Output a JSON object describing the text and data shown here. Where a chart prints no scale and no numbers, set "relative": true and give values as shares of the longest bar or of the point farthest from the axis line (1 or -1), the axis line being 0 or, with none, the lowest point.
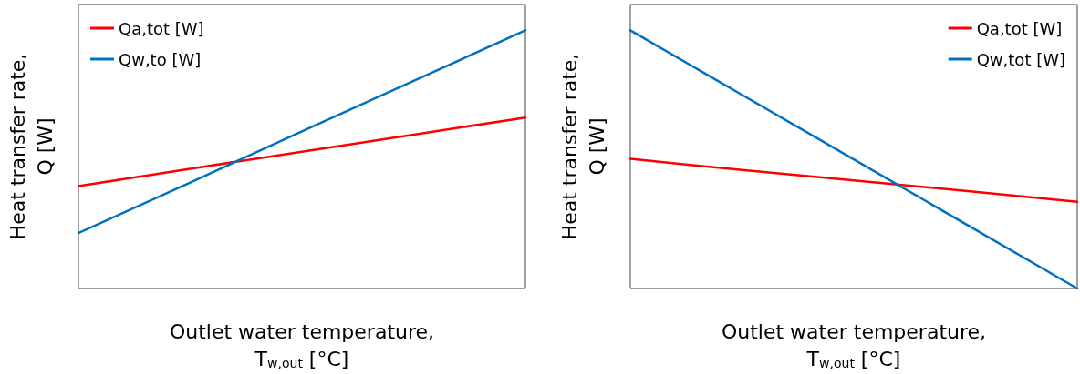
{
  "chart_data": [
    {
      "type": "line",
      "relative": true,
      "xlabel": "Outlet water temperature,\nT$_{w,out}$ [°C]",
      "ylabel": "Heat transfer rate,\nQ [W]",
      "categories": [
        null,
        null,
        null,
        null,
        null
      ],
      "legend": "top left",
      "grid": false,
      "marker": "none",
      "series": [
        {
          "name": "Qa,tot [W]",
          "color": "#ff0000",
          "values": [
            0.397,
            0.464,
            0.53,
            0.596,
            0.662
          ]
        },
        {
          "name": "Qw,to [W]",
          "color": "#0070c0",
          "values": [
            0.215,
            0.41,
            0.609,
            0.804,
            1
          ]
        }
      ]
    },
    {
      "type": "line",
      "relative": true,
      "xlabel": "Outlet water temperature,\nT$_{w,out}$ [°C]",
      "ylabel": "Heat transfer rate,\nQ [W]",
      "categories": [
        null,
        null,
        null,
        null,
        null
      ],
      "legend": "top right",
      "grid": false,
      "marker": "none",
      "series": [
        {
          "name": "Qa,tot [W]",
          "color": "#ff0000",
          "values": [
            0.502,
            0.459,
            0.419,
            0.378,
            0.336
          ]
        },
        {
          "name": "Qw,tot [W]",
          "color": "#0070c0",
          "values": [
            1,
            0.75,
            0.5,
            0.25,
            0
          ]
        }
      ]
    }
  ]
}
